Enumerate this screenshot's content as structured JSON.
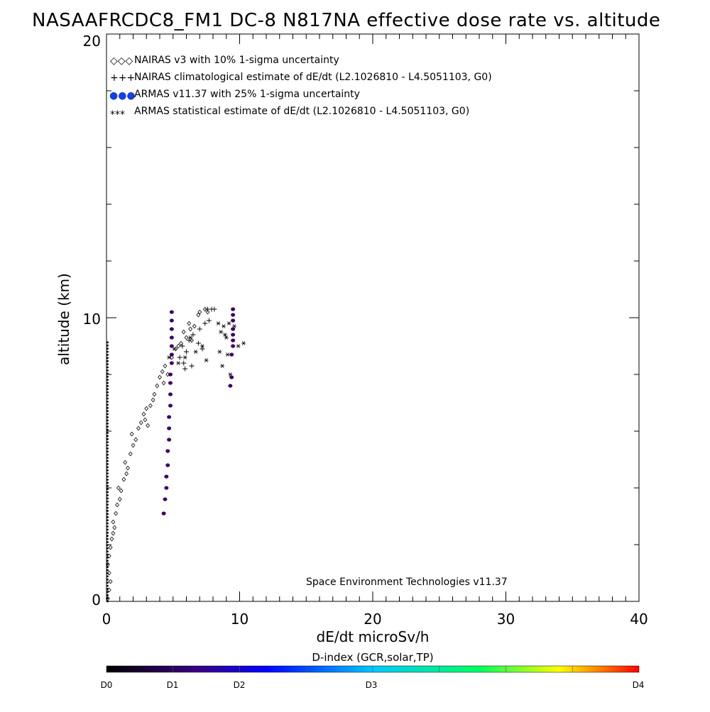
{
  "chart_data": {
    "type": "scatter",
    "title": "NASAAFRCDC8_FM1 DC-8   N817NA effective dose rate vs. altitude",
    "xlabel": "dE/dt microSv/h",
    "ylabel": "altitude (km)",
    "xlim": [
      0,
      40
    ],
    "ylim": [
      0,
      20
    ],
    "xticks": [
      "0",
      "10",
      "20",
      "30",
      "40"
    ],
    "yticks": [
      "0",
      "10",
      "20"
    ],
    "grid": false,
    "legend_position": "top-left",
    "legend": [
      {
        "symbol": "◇◇◇",
        "label": "NAIRAS v3 with 10% 1-sigma uncertainty"
      },
      {
        "symbol": "+++",
        "label": "NAIRAS climatological estimate of dE/dt (L2.1026810 - L4.5051103, G0)"
      },
      {
        "symbol": "●●●",
        "label": "ARMAS v11.37 with 25% 1-sigma uncertainty"
      },
      {
        "symbol": "***",
        "label": "ARMAS statistical estimate of dE/dt (L2.1026810 - L4.5051103, G0)"
      }
    ],
    "annotation": "Space Environment Technologies v11.37",
    "colorbar": {
      "title": "D-index (GCR,solar,TP)",
      "labels": [
        "D0",
        "D1",
        "D2",
        "D3",
        "D4"
      ],
      "colors": [
        "#000000",
        "#3a0080",
        "#0000ff",
        "#00c8ff",
        "#00ff60",
        "#ffff00",
        "#ff0000"
      ]
    },
    "series": [
      {
        "name": "NAIRAS v3 with 10% 1-sigma uncertainty",
        "marker": "diamond",
        "x": [
          0.1,
          0.2,
          0.3,
          0.2,
          0.1,
          0.2,
          0.3,
          0.4,
          0.5,
          0.6,
          0.5,
          0.7,
          0.8,
          1.0,
          1.1,
          0.9,
          1.3,
          1.5,
          1.6,
          1.4,
          1.8,
          2.0,
          2.2,
          1.9,
          2.4,
          2.6,
          2.8,
          3.0,
          3.3,
          3.1,
          2.9,
          3.5,
          3.6,
          3.8,
          4.0,
          4.2,
          4.4,
          4.6,
          4.3,
          4.9,
          5.2,
          5.6,
          6.0,
          6.3,
          6.6,
          6.9,
          7.0,
          7.4,
          7.6,
          5.4,
          5.8,
          6.2,
          6.4
        ],
        "y": [
          0.1,
          0.4,
          0.7,
          1.0,
          1.3,
          1.6,
          1.9,
          2.2,
          2.4,
          2.6,
          2.8,
          3.1,
          3.4,
          3.6,
          3.9,
          4.0,
          4.3,
          4.5,
          4.7,
          4.9,
          5.2,
          5.5,
          5.7,
          5.9,
          6.1,
          6.3,
          6.6,
          6.8,
          6.9,
          6.2,
          6.4,
          7.1,
          7.3,
          7.6,
          7.9,
          8.1,
          8.3,
          8.0,
          7.7,
          8.6,
          8.9,
          9.1,
          9.3,
          9.6,
          9.7,
          10.1,
          10.2,
          10.3,
          10.2,
          9.0,
          9.5,
          9.8,
          9.2
        ]
      },
      {
        "name": "NAIRAS climatological estimate of dE/dt (L2.1026810 - L4.5051103, G0)",
        "marker": "plus",
        "x": [
          5.5,
          5.8,
          6.0,
          5.7,
          6.2,
          6.5,
          6.9,
          7.2,
          7.0,
          7.6,
          7.9,
          8.1,
          5.9,
          6.4,
          7.4,
          7.7
        ],
        "y": [
          8.6,
          8.4,
          8.8,
          9.0,
          9.2,
          9.4,
          9.1,
          8.9,
          9.6,
          10.3,
          10.3,
          10.3,
          8.2,
          8.3,
          9.8,
          9.9
        ]
      },
      {
        "name": "ARMAS v11.37 with 25% 1-sigma uncertainty",
        "marker": "dot",
        "x": [
          4.3,
          4.4,
          4.5,
          4.5,
          4.6,
          4.6,
          4.7,
          4.7,
          4.7,
          4.8,
          4.8,
          4.8,
          4.8,
          4.9,
          4.9,
          4.9,
          4.9,
          4.9,
          4.9,
          4.9,
          9.3,
          9.4,
          9.4,
          9.5,
          9.5,
          9.5,
          9.5,
          9.5,
          9.5,
          9.5
        ],
        "y": [
          3.1,
          3.6,
          4.0,
          4.4,
          4.8,
          5.3,
          5.7,
          6.1,
          6.5,
          6.9,
          7.3,
          7.7,
          8.0,
          8.4,
          8.7,
          9.0,
          9.3,
          9.6,
          9.9,
          10.2,
          7.6,
          7.9,
          8.7,
          9.0,
          9.2,
          9.4,
          9.6,
          9.9,
          10.1,
          10.3
        ]
      },
      {
        "name": "ARMAS statistical estimate of dE/dt (L2.1026810 - L4.5051103, G0)",
        "marker": "asterisk",
        "x": [
          4.7,
          5.1,
          5.4,
          5.9,
          6.3,
          6.7,
          7.2,
          7.5,
          8.5,
          8.7,
          8.9,
          9.1,
          9.3,
          9.6,
          9.9,
          10.3,
          8.4,
          8.6,
          8.8,
          9.0,
          9.2
        ],
        "y": [
          8.6,
          8.9,
          8.4,
          8.6,
          9.3,
          8.8,
          9.0,
          8.5,
          8.8,
          8.3,
          9.4,
          8.7,
          8.0,
          9.7,
          9.0,
          9.1,
          9.8,
          9.5,
          9.7,
          9.3,
          9.8
        ]
      }
    ]
  }
}
